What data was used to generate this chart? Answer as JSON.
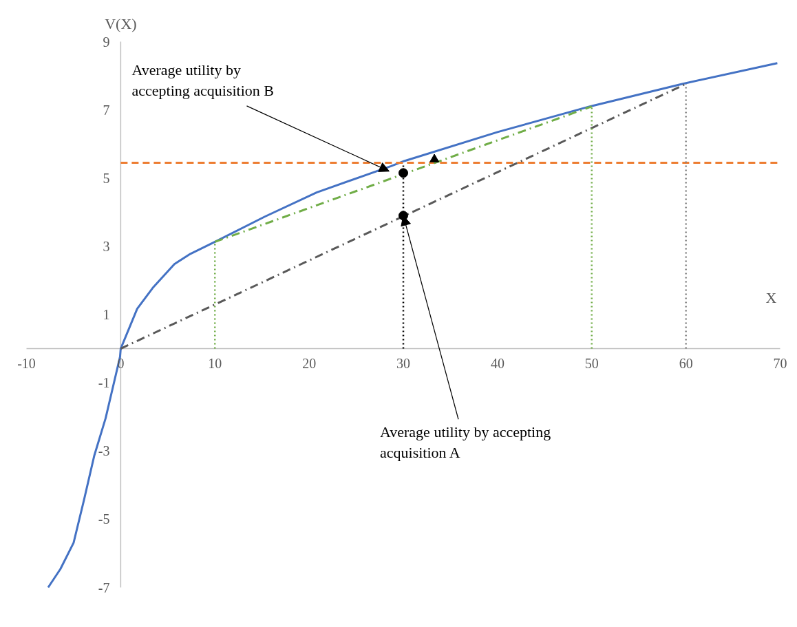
{
  "chart_data": {
    "type": "line",
    "xlabel": "X",
    "ylabel": "V(X)",
    "xlim": [
      -10,
      70
    ],
    "xticks": [
      -10,
      0,
      10,
      20,
      30,
      40,
      50,
      60,
      70
    ],
    "ylim": [
      -7,
      9
    ],
    "yticks": [
      -7,
      -5,
      -3,
      -1,
      1,
      3,
      5,
      7,
      9
    ],
    "series": [
      {
        "color": "#4472c4",
        "line_style": "solid",
        "x": [
          -7.7,
          -6.4,
          -5,
          -3.9,
          -2.8,
          -1.6,
          -0.07,
          0,
          1.75,
          3.4,
          5.7,
          7.4,
          10,
          15.3,
          20.8,
          28.7,
          30.1,
          40,
          49.8,
          59.6,
          69.7
        ],
        "values": [
          -7.0,
          -6.46,
          -5.69,
          -4.44,
          -3.13,
          -2.04,
          -0.24,
          0,
          1.17,
          1.78,
          2.48,
          2.78,
          3.13,
          3.87,
          4.58,
          5.35,
          5.5,
          6.35,
          7.1,
          7.76,
          8.37
        ]
      },
      {
        "color": "#ed7d31",
        "line_style": "dashed",
        "x": [
          0,
          70
        ],
        "values": [
          5.45,
          5.45
        ]
      },
      {
        "color": "#70ad47",
        "line_style": "dashdot",
        "x": [
          10,
          50
        ],
        "values": [
          3.13,
          7.1
        ]
      },
      {
        "color": "#595959",
        "line_style": "dashdot",
        "x": [
          0,
          60
        ],
        "values": [
          0,
          7.76
        ]
      },
      {
        "color": "#70ad47",
        "line_style": "dotted",
        "x": [
          10,
          10
        ],
        "values": [
          0,
          3.13
        ]
      },
      {
        "color": "#70ad47",
        "line_style": "dotted",
        "x": [
          50,
          50
        ],
        "values": [
          0,
          7.1
        ]
      },
      {
        "color": "#7f7f7f",
        "line_style": "dotted",
        "x": [
          60,
          60
        ],
        "values": [
          0,
          7.76
        ]
      },
      {
        "color": "#000000",
        "line_style": "dotted",
        "x": [
          30,
          30
        ],
        "values": [
          0,
          5.39
        ]
      },
      {
        "type": "scatter",
        "color": "#000000",
        "marker": "circle",
        "x": [
          30,
          30
        ],
        "values": [
          5.15,
          3.9
        ]
      },
      {
        "type": "scatter",
        "color": "#000000",
        "marker": "triangle",
        "x": [
          33.3
        ],
        "values": [
          5.55
        ]
      }
    ],
    "annotations": [
      {
        "text": "Average utility by\naccepting acquisition B",
        "x": 28.5,
        "y": 5.2
      },
      {
        "text": "Average utility by accepting\nacquisition A",
        "x": 30,
        "y": 3.9
      }
    ]
  }
}
